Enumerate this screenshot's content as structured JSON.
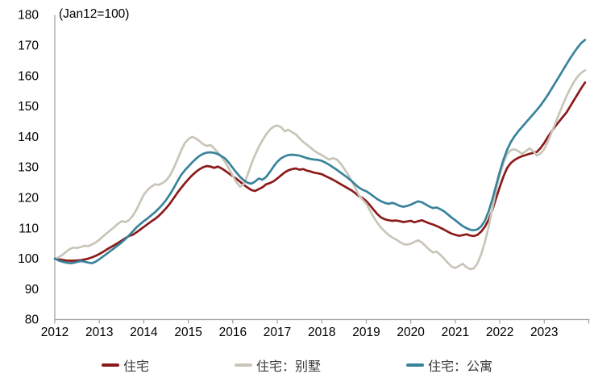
{
  "chart_data": {
    "type": "line",
    "title": "(Jan12=100)",
    "xlabel": "",
    "ylabel": "",
    "grid": false,
    "legend_position": "bottom",
    "axis_color": "#a6a6a6",
    "text_color": "#000000",
    "ylim": [
      80,
      180
    ],
    "y_ticks": [
      80,
      90,
      100,
      110,
      120,
      130,
      140,
      150,
      160,
      170,
      180
    ],
    "x_tick_labels": [
      "2012",
      "2013",
      "2014",
      "2015",
      "2016",
      "2017",
      "2018",
      "2019",
      "2020",
      "2021",
      "2022",
      "2023"
    ],
    "x_start_year": 2012,
    "x_end_year": 2024,
    "points_per_year": 12,
    "series": [
      {
        "name": "住宅",
        "color": "#8b1a1a",
        "values": [
          100,
          99.8,
          99.6,
          99.4,
          99.3,
          99.3,
          99.4,
          99.5,
          99.7,
          100,
          100.4,
          100.9,
          101.5,
          102.2,
          103,
          103.7,
          104.4,
          105.1,
          105.9,
          106.7,
          107.4,
          107.8,
          108.6,
          109.5,
          110.4,
          111.3,
          112.2,
          113,
          114,
          115.2,
          116.5,
          118,
          119.7,
          121.5,
          123.1,
          124.6,
          126,
          127.3,
          128.4,
          129.3,
          130,
          130.4,
          130.2,
          129.8,
          130.2,
          129.6,
          128.8,
          127.9,
          127,
          126.2,
          125.2,
          124.2,
          123.3,
          122.5,
          122.2,
          122.8,
          123.4,
          124.4,
          124.8,
          125.4,
          126.3,
          127.3,
          128.3,
          129,
          129.4,
          129.6,
          129.2,
          129.4,
          128.9,
          128.6,
          128.2,
          128,
          127.7,
          127.1,
          126.5,
          125.9,
          125.2,
          124.5,
          123.8,
          123.1,
          122.4,
          121.5,
          120.5,
          119.9,
          118.9,
          117.5,
          116,
          114.6,
          113.5,
          112.9,
          112.6,
          112.4,
          112.5,
          112.3,
          112,
          112.2,
          112.4,
          111.9,
          112.3,
          112.6,
          112.1,
          111.6,
          111.2,
          110.7,
          110.1,
          109.5,
          108.8,
          108.2,
          107.8,
          107.5,
          107.7,
          108,
          107.6,
          107.4,
          107.8,
          108.9,
          110.5,
          112.8,
          116,
          119.8,
          123.5,
          127,
          129.8,
          131.4,
          132.4,
          133.1,
          133.6,
          134,
          134.4,
          134.7,
          135,
          136.3,
          138,
          140,
          141.8,
          143.5,
          145,
          146.5,
          148,
          150,
          152,
          154,
          156,
          157.8
        ]
      },
      {
        "name": "住宅：别墅",
        "color": "#c9c5b8",
        "values": [
          100,
          100.4,
          101.2,
          102.2,
          103.1,
          103.6,
          103.5,
          103.8,
          104.2,
          104.1,
          104.6,
          105.3,
          106.2,
          107.3,
          108.3,
          109.3,
          110.3,
          111.4,
          112.3,
          112,
          112.6,
          114,
          116,
          118.5,
          121,
          122.5,
          123.6,
          124.4,
          124.2,
          124.8,
          125.6,
          127.2,
          129.5,
          132.3,
          135.3,
          137.8,
          139.2,
          140,
          139.5,
          138.6,
          137.6,
          137,
          137.3,
          136.2,
          134.8,
          133.3,
          131.6,
          129.5,
          127.2,
          125,
          123.6,
          124.5,
          127.5,
          131,
          134,
          136.6,
          138.8,
          140.8,
          142.3,
          143.3,
          143.7,
          143.2,
          141.8,
          142.3,
          141.5,
          140.8,
          139.5,
          138.3,
          137.4,
          136.4,
          135.4,
          134.6,
          134,
          133.2,
          132.5,
          133,
          132.6,
          131.3,
          129.6,
          127.7,
          125.6,
          123.3,
          120.8,
          119.3,
          118,
          115.8,
          113.6,
          111.7,
          110.1,
          108.9,
          107.8,
          106.9,
          106.3,
          105.5,
          104.8,
          104.6,
          104.9,
          105.5,
          106,
          105.3,
          104.1,
          102.9,
          102,
          102.3,
          101.2,
          100,
          98.6,
          97.4,
          96.9,
          97.6,
          98.3,
          97.2,
          96.5,
          96.8,
          98.5,
          101.5,
          105.5,
          110.5,
          116.5,
          122.5,
          127.5,
          131.5,
          134.3,
          135.6,
          135.9,
          135.3,
          134.4,
          135.2,
          136.2,
          135.3,
          133.8,
          134.5,
          136,
          138.5,
          141.5,
          144.5,
          147.5,
          150.5,
          153.3,
          155.8,
          158,
          159.8,
          161,
          161.8
        ]
      },
      {
        "name": "住宅：公寓",
        "color": "#39839b",
        "values": [
          100,
          99.4,
          99,
          98.7,
          98.5,
          98.6,
          98.9,
          99.2,
          99,
          98.7,
          98.5,
          99,
          99.8,
          100.7,
          101.6,
          102.5,
          103.4,
          104.3,
          105.3,
          106.4,
          107.6,
          108.9,
          110.2,
          111.3,
          112.3,
          113.2,
          114.2,
          115.2,
          116.4,
          117.7,
          119.2,
          121,
          123,
          125.2,
          127.3,
          128.9,
          130.2,
          131.5,
          132.7,
          133.7,
          134.4,
          134.8,
          134.9,
          134.7,
          134.3,
          133.6,
          132.8,
          131.4,
          129.8,
          128.2,
          126.8,
          125.7,
          124.9,
          124.6,
          125.3,
          126.3,
          125.9,
          126.8,
          128.4,
          130.2,
          131.8,
          132.9,
          133.6,
          134,
          134.1,
          134,
          133.8,
          133.4,
          133,
          132.7,
          132.5,
          132.4,
          132.1,
          131.5,
          130.8,
          130,
          129.2,
          128.3,
          127.4,
          126.5,
          125.5,
          124.4,
          123.3,
          122.6,
          122.1,
          121.3,
          120.4,
          119.5,
          118.8,
          118.3,
          118,
          118.3,
          117.9,
          117.3,
          117,
          117.3,
          117.7,
          118.3,
          118.8,
          118.5,
          117.8,
          117.1,
          116.6,
          116.8,
          116.2,
          115.5,
          114.5,
          113.5,
          112.6,
          111.6,
          110.7,
          110,
          109.5,
          109.3,
          109.6,
          110.6,
          112.5,
          115.5,
          119.5,
          124,
          128.5,
          132.5,
          135.8,
          138.3,
          140.2,
          141.8,
          143.2,
          144.6,
          146,
          147.4,
          148.8,
          150.3,
          152,
          153.8,
          155.8,
          157.8,
          159.8,
          161.8,
          163.8,
          165.8,
          167.6,
          169.3,
          170.8,
          171.8
        ]
      }
    ]
  },
  "legend": {
    "items": [
      {
        "label": "住宅"
      },
      {
        "label": "住宅：别墅"
      },
      {
        "label": "住宅：公寓"
      }
    ]
  }
}
